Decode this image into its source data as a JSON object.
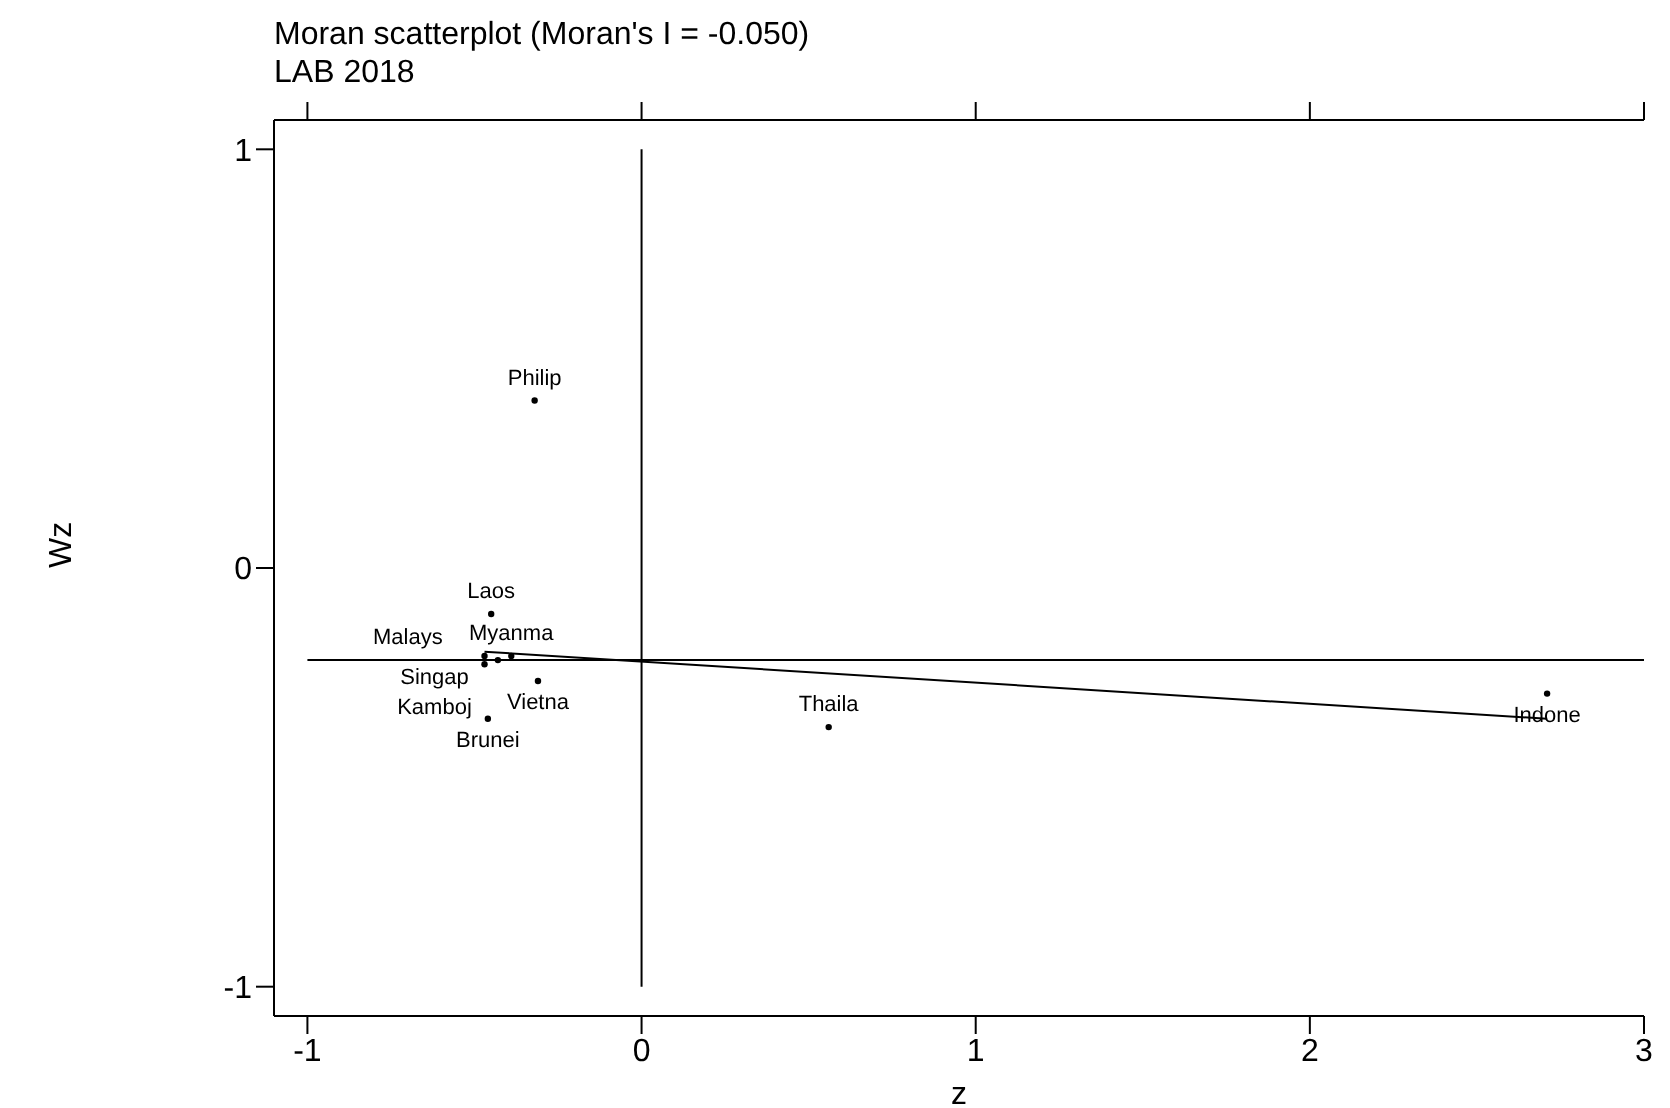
{
  "chart_data": {
    "type": "scatter",
    "title": "Moran scatterplot (Moran's I = -0.050)",
    "subtitle": "LAB 2018",
    "xlabel": "z",
    "ylabel": "Wz",
    "series": [
      {
        "type": "scatter",
        "color": "#000000",
        "marker": "circle",
        "x": [
          -0.32,
          -0.45,
          -0.46,
          0.56,
          2.71,
          -0.47,
          -0.39,
          -0.43,
          -0.47,
          -0.31
        ],
        "values": [
          0.4,
          -0.11,
          -0.36,
          -0.38,
          -0.3,
          -0.21,
          -0.21,
          -0.22,
          -0.23,
          -0.27
        ]
      },
      {
        "type": "line",
        "color": "#000000",
        "marker": "none",
        "x": [
          -0.47,
          2.71
        ],
        "values": [
          -0.2,
          -0.36
        ]
      }
    ],
    "annotations": [
      {
        "text": "Philip",
        "x": -0.32,
        "y": 0.4
      },
      {
        "text": "Laos",
        "x": -0.45,
        "y": -0.11
      },
      {
        "text": "Brunei",
        "x": -0.46,
        "y": -0.36
      },
      {
        "text": "Thaila",
        "x": 0.56,
        "y": -0.38
      },
      {
        "text": "Indone",
        "x": 2.71,
        "y": -0.3
      },
      {
        "text": "Singap",
        "x": -0.47,
        "y": -0.21
      },
      {
        "text": "Myanma",
        "x": -0.39,
        "y": -0.21
      },
      {
        "text": "Malays",
        "x": -0.43,
        "y": -0.22
      },
      {
        "text": "Kamboj",
        "x": -0.47,
        "y": -0.23
      },
      {
        "text": "Vietna",
        "x": -0.31,
        "y": -0.27
      }
    ],
    "ref_lines": [
      {
        "axis": "y",
        "value": -0.22,
        "color": "#000000"
      },
      {
        "axis": "x",
        "value": 0,
        "color": "#000000"
      }
    ],
    "xlim": [
      -1.1,
      3.0
    ],
    "xticks": [
      -1,
      0,
      1,
      2,
      3
    ],
    "ylim": [
      -1.07,
      1.07
    ],
    "yticks": [
      -1,
      0,
      1
    ],
    "grid": false,
    "legend": false
  }
}
